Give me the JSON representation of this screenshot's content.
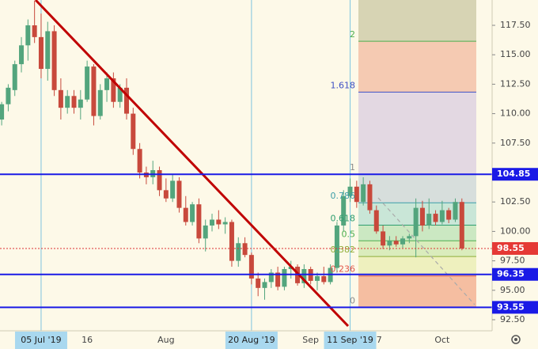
{
  "chart_data": {
    "type": "candlestick",
    "categories": [
      null,
      null,
      null,
      null,
      null,
      null,
      "05 Jul '19",
      null,
      null,
      null,
      null,
      null,
      null,
      "16",
      null,
      null,
      null,
      null,
      null,
      null,
      null,
      null,
      null,
      null,
      null,
      "Aug",
      null,
      null,
      null,
      null,
      null,
      null,
      null,
      null,
      null,
      null,
      null,
      null,
      "20 Aug '19",
      null,
      null,
      null,
      null,
      null,
      null,
      null,
      null,
      "Sep",
      null,
      null,
      null,
      null,
      null,
      "11 Sep '19",
      null,
      null,
      null,
      "17",
      null,
      null,
      null,
      null,
      null,
      null,
      null,
      null,
      null,
      "Oct",
      null,
      null,
      null
    ],
    "highlighted": [
      6,
      38,
      53
    ],
    "open": [
      109.5,
      110.8,
      112,
      114.2,
      115.8,
      117.5,
      116.5,
      113.8,
      117,
      112,
      110.5,
      111.5,
      110.5,
      111.2,
      114,
      109.8,
      112,
      113,
      111,
      112.2,
      110,
      107,
      105,
      104.6,
      105.2,
      103.5,
      102.8,
      104.3,
      102,
      100.8,
      102.3,
      99.4,
      100.5,
      101,
      100.6,
      100.8,
      97.5,
      99,
      98,
      96,
      95.2,
      95.7,
      96.5,
      95.3,
      96.8,
      97,
      95.6,
      96.8,
      95.8,
      96.2,
      95.7,
      96.9,
      100.5,
      103,
      103.8,
      102.5,
      104,
      101.8,
      100,
      98.8,
      99.2,
      98.9,
      99.4,
      99.6,
      102,
      100.5,
      101.5,
      100.8,
      101.8,
      101,
      102.5
    ],
    "high": [
      111,
      112.5,
      114.5,
      116.5,
      118,
      119.6,
      118.5,
      117.8,
      117.5,
      113,
      112,
      112,
      112,
      114.5,
      114.2,
      112.5,
      113.5,
      113.5,
      112.5,
      113,
      110.5,
      107.5,
      105.5,
      106,
      105.5,
      104.5,
      104.8,
      104.6,
      103,
      102.5,
      102.8,
      101,
      101.5,
      101.8,
      101.2,
      101,
      99.5,
      99.5,
      98.2,
      96.5,
      96,
      96.8,
      97,
      97,
      97.5,
      97.2,
      97.2,
      97,
      96.5,
      97,
      97.2,
      100.8,
      103.5,
      104.5,
      104.3,
      104.6,
      104.3,
      102.2,
      100.5,
      99.6,
      99.6,
      99.6,
      99.8,
      102.8,
      102.6,
      102.8,
      101.8,
      102.6,
      102,
      102.8,
      102.8
    ],
    "low": [
      109,
      110.2,
      111.5,
      113.5,
      114.5,
      116,
      113,
      112.8,
      111.5,
      109.5,
      110,
      110,
      109.5,
      111,
      109,
      109.5,
      111,
      110.5,
      110.5,
      109.5,
      106.5,
      104.5,
      104,
      104,
      103,
      102.5,
      102.5,
      101.6,
      100.5,
      100.5,
      99,
      98.3,
      100,
      100.2,
      99.8,
      97,
      97,
      97.8,
      95.5,
      94.5,
      94.2,
      95.2,
      95,
      95,
      96,
      95.4,
      95.2,
      95.5,
      95,
      95.5,
      95.5,
      96.5,
      100,
      102.5,
      102,
      102.2,
      101.5,
      99.8,
      98.5,
      98.4,
      98.7,
      98.6,
      99,
      97.8,
      100,
      100.2,
      100.5,
      100.6,
      100.7,
      100.8,
      98.4
    ],
    "close": [
      110.8,
      112.2,
      114.2,
      115.8,
      117.5,
      116.5,
      113.8,
      117,
      112,
      110.5,
      111.5,
      110.5,
      111.2,
      114,
      109.8,
      112,
      113,
      111,
      112.2,
      110,
      107,
      105,
      104.6,
      105.2,
      103.5,
      102.8,
      104.3,
      102,
      100.8,
      102.3,
      99.4,
      100.5,
      101,
      100.6,
      100.8,
      97.5,
      99,
      98,
      96,
      95.2,
      95.7,
      96.5,
      95.3,
      96.8,
      97,
      95.6,
      96.8,
      95.8,
      96.2,
      95.7,
      96.9,
      100.5,
      103,
      103.8,
      102.5,
      104,
      101.8,
      100,
      98.8,
      99.2,
      98.9,
      99.4,
      99.6,
      102,
      100.5,
      101.5,
      100.8,
      101.8,
      101,
      102.5,
      98.55
    ],
    "up_color": "#53a57d",
    "down_color": "#c8493c",
    "ylim": [
      91.56,
      119.65
    ],
    "yticks": [
      {
        "value": 92.5,
        "label": "92.50"
      },
      {
        "value": 95,
        "label": "95.00"
      },
      {
        "value": 97.5,
        "label": "97.50"
      },
      {
        "value": 100,
        "label": "100.00"
      },
      {
        "value": 102.5,
        "label": "102.50"
      },
      {
        "value": 105,
        "label": "105.00"
      },
      {
        "value": 107.5,
        "label": "107.50"
      },
      {
        "value": 110,
        "label": "110.00"
      },
      {
        "value": 112.5,
        "label": "112.50"
      },
      {
        "value": 115,
        "label": "115.00"
      },
      {
        "value": 117.5,
        "label": "117.50"
      }
    ],
    "horizontal_lines": [
      104.85,
      96.35,
      93.55
    ],
    "fib_levels": [
      {
        "level": 0,
        "color": "#8c8c8c"
      },
      {
        "level": 0.236,
        "color": "#e0554a"
      },
      {
        "level": 0.382,
        "color": "#8fae3a"
      },
      {
        "level": 0.5,
        "color": "#4caf50"
      },
      {
        "level": 0.618,
        "color": "#2e9e6f"
      },
      {
        "level": 0.786,
        "color": "#3a9ea8"
      },
      {
        "level": 1,
        "color": "#8c8c8c"
      },
      {
        "level": 1.618,
        "color": "#3f51c5"
      },
      {
        "level": 2,
        "color": "#4caf50"
      }
    ]
  }
}
